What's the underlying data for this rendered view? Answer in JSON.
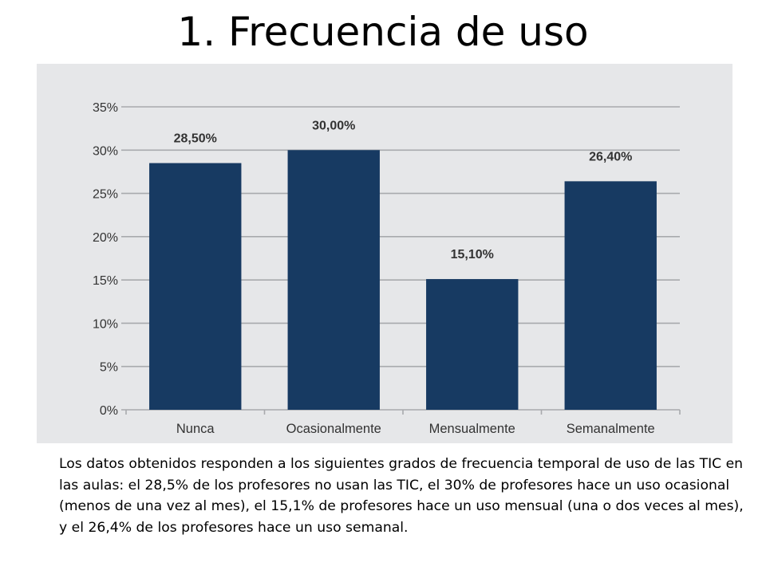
{
  "slide": {
    "title": "1. Frecuencia de uso",
    "caption": "Los datos obtenidos responden a los siguientes grados de frecuencia temporal de uso de las TIC en las aulas: el 28,5% de los profesores no usan las TIC, el 30% de profesores hace un uso ocasional (menos de una vez al mes), el 15,1% de profesores hace un uso mensual (una o dos veces al mes), y el 26,4%  de los profesores hace un uso semanal."
  },
  "chart_data": {
    "type": "bar",
    "categories": [
      "Nunca",
      "Ocasionalmente",
      "Mensualmente",
      "Semanalmente"
    ],
    "values": [
      28.5,
      30.0,
      15.1,
      26.4
    ],
    "value_labels": [
      "28,50%",
      "30,00%",
      "15,10%",
      "26,40%"
    ],
    "y_ticks": [
      0,
      5,
      10,
      15,
      20,
      25,
      30,
      35
    ],
    "y_tick_labels": [
      "0%",
      "5%",
      "10%",
      "15%",
      "20%",
      "25%",
      "30%",
      "35%"
    ],
    "ylim": [
      0,
      35
    ],
    "grid": true,
    "legend": "none",
    "colors": {
      "bar": "#173a62",
      "panel_background": "#e6e7e9",
      "gridline": "#a8aaad",
      "text": "#333333"
    }
  }
}
